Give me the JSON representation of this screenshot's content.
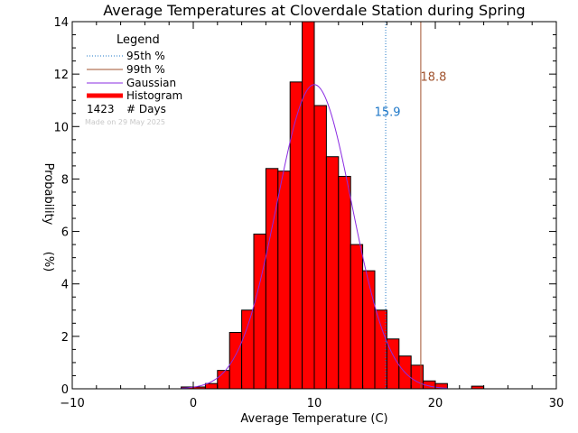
{
  "chart_data": {
    "type": "bar",
    "title": "Average Temperatures at Cloverdale Station during Spring",
    "xlabel": "Average Temperature (C)",
    "ylabel_line1": "Probability",
    "ylabel_line2": "(%)",
    "xlim": [
      -10,
      30
    ],
    "ylim": [
      0,
      14
    ],
    "xticks": [
      -10,
      0,
      10,
      20,
      30
    ],
    "yticks": [
      0,
      2,
      4,
      6,
      8,
      10,
      12,
      14
    ],
    "bin_width": 1,
    "bins": [
      {
        "x0": -1,
        "value": 0.07
      },
      {
        "x0": 0,
        "value": 0.07
      },
      {
        "x0": 1,
        "value": 0.2
      },
      {
        "x0": 2,
        "value": 0.7
      },
      {
        "x0": 3,
        "value": 2.15
      },
      {
        "x0": 4,
        "value": 3.0
      },
      {
        "x0": 5,
        "value": 5.9
      },
      {
        "x0": 6,
        "value": 8.4
      },
      {
        "x0": 7,
        "value": 8.3
      },
      {
        "x0": 8,
        "value": 11.7
      },
      {
        "x0": 9,
        "value": 14.0
      },
      {
        "x0": 10,
        "value": 10.8
      },
      {
        "x0": 11,
        "value": 8.85
      },
      {
        "x0": 12,
        "value": 8.1
      },
      {
        "x0": 13,
        "value": 5.5
      },
      {
        "x0": 14,
        "value": 4.5
      },
      {
        "x0": 15,
        "value": 3.0
      },
      {
        "x0": 16,
        "value": 1.9
      },
      {
        "x0": 17,
        "value": 1.25
      },
      {
        "x0": 18,
        "value": 0.9
      },
      {
        "x0": 19,
        "value": 0.3
      },
      {
        "x0": 20,
        "value": 0.2
      },
      {
        "x0": 23,
        "value": 0.1
      }
    ],
    "gaussian": {
      "mean": 10.0,
      "peak": 11.6,
      "sigma": 3.1
    },
    "percentile95": {
      "value": 15.9,
      "label": "15.9",
      "color": "#1f78c8"
    },
    "percentile99": {
      "value": 18.8,
      "label": "18.8",
      "color": "#a0522d"
    },
    "colors": {
      "histogram": "#ff0000",
      "gaussian": "#8a2be2"
    },
    "legend": {
      "title": "Legend",
      "placement": "top-left",
      "items": [
        {
          "label": "95th %",
          "style": "dotted",
          "color": "#1f78c8"
        },
        {
          "label": "99th %",
          "style": "solid",
          "color": "#a0522d"
        },
        {
          "label": "Gaussian",
          "style": "solid",
          "color": "#8a2be2"
        },
        {
          "label": "Histogram",
          "style": "thick",
          "color": "#ff0000"
        }
      ],
      "count_value": "1423",
      "count_label": "# Days",
      "made_on": "Made on 29 May 2025"
    }
  }
}
